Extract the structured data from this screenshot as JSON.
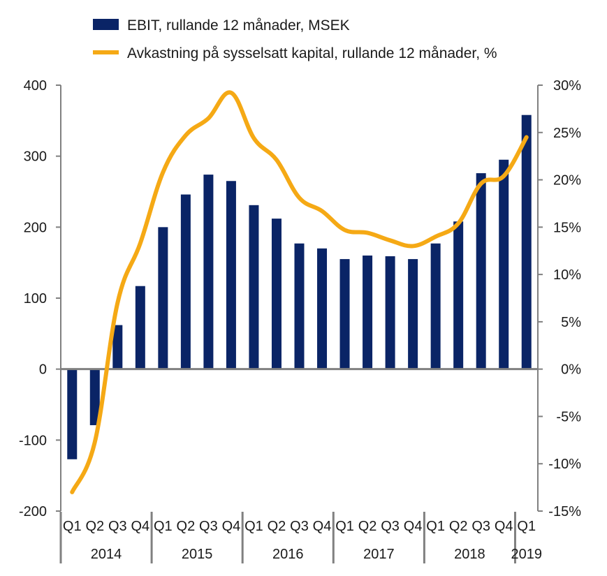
{
  "chart_data": {
    "type": "bar+line",
    "title": "",
    "colors": {
      "bar": "#0a2466",
      "line": "#f5a915",
      "axis": "#808080",
      "text": "#1a1a1a"
    },
    "quarters": [
      "Q1",
      "Q2",
      "Q3",
      "Q4",
      "Q1",
      "Q2",
      "Q3",
      "Q4",
      "Q1",
      "Q2",
      "Q3",
      "Q4",
      "Q1",
      "Q2",
      "Q3",
      "Q4",
      "Q1",
      "Q2",
      "Q3",
      "Q4",
      "Q1"
    ],
    "years": [
      {
        "label": "2014",
        "count": 4
      },
      {
        "label": "2015",
        "count": 4
      },
      {
        "label": "2016",
        "count": 4
      },
      {
        "label": "2017",
        "count": 4
      },
      {
        "label": "2018",
        "count": 4
      },
      {
        "label": "2019",
        "count": 1
      }
    ],
    "series": [
      {
        "name": "EBIT, rullande 12 månader, MSEK",
        "type": "bar",
        "axis": "left",
        "values": [
          -127,
          -79,
          62,
          117,
          200,
          246,
          274,
          265,
          231,
          212,
          177,
          170,
          155,
          160,
          159,
          155,
          177,
          208,
          276,
          295,
          358
        ]
      },
      {
        "name": "Avkastning på sysselsatt kapital, rullande 12 månader, %",
        "type": "line",
        "axis": "right",
        "values": [
          -13.0,
          -7.7,
          7.0,
          13.3,
          20.8,
          24.7,
          26.5,
          29.2,
          24.4,
          22.1,
          18.1,
          16.7,
          14.7,
          14.4,
          13.6,
          13.0,
          14.0,
          15.4,
          19.6,
          20.4,
          24.5
        ]
      }
    ],
    "y_left": {
      "ylim": [
        -200,
        400
      ],
      "ticks": [
        400,
        300,
        200,
        100,
        0,
        -100,
        -200
      ],
      "tick_labels": [
        "400",
        "300",
        "200",
        "100",
        "0",
        "-100",
        "-200"
      ]
    },
    "y_right": {
      "ylim": [
        -15,
        30
      ],
      "ticks": [
        30,
        25,
        20,
        15,
        10,
        5,
        0,
        -5,
        -10,
        -15
      ],
      "tick_labels": [
        "30%",
        "25%",
        "20%",
        "15%",
        "10%",
        "5%",
        "0%",
        "-5%",
        "-10%",
        "-15%"
      ]
    }
  }
}
